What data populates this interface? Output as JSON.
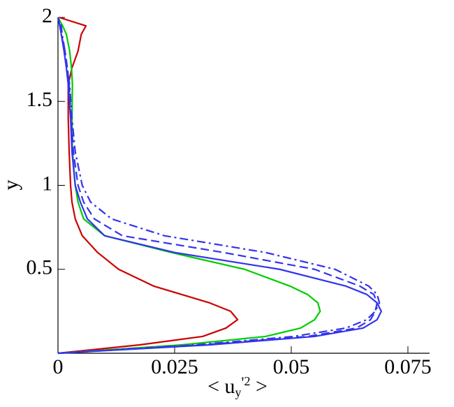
{
  "chart_data": {
    "type": "line",
    "ylabel": "y",
    "xlabel_parts": [
      "< u",
      "y",
      "'",
      "2",
      " >"
    ],
    "xlim": [
      0,
      0.08
    ],
    "xticks": [
      0,
      0.025,
      0.05,
      0.075
    ],
    "ylim": [
      0,
      2
    ],
    "yticks": [
      0.5,
      1,
      1.5,
      2
    ],
    "y": [
      0,
      0.05,
      0.1,
      0.15,
      0.2,
      0.25,
      0.3,
      0.35,
      0.4,
      0.5,
      0.6,
      0.7,
      0.8,
      0.9,
      1.0,
      1.2,
      1.4,
      1.6,
      1.7,
      1.8,
      1.9,
      1.95,
      2.0
    ],
    "series": [
      {
        "color": "#cc0000",
        "dash": "solid",
        "values": [
          0,
          0.0175,
          0.031,
          0.036,
          0.0385,
          0.037,
          0.0325,
          0.0265,
          0.0205,
          0.013,
          0.0085,
          0.0052,
          0.0037,
          0.003,
          0.0027,
          0.0024,
          0.0022,
          0.0022,
          0.003,
          0.0043,
          0.005,
          0.006,
          0.0003
        ]
      },
      {
        "color": "#00cc00",
        "dash": "solid",
        "values": [
          0,
          0.0265,
          0.0445,
          0.052,
          0.055,
          0.0562,
          0.0557,
          0.0535,
          0.0497,
          0.04,
          0.0243,
          0.01,
          0.0055,
          0.0043,
          0.0037,
          0.0031,
          0.003,
          0.0031,
          0.0029,
          0.0025,
          0.0018,
          0.001,
          0
        ]
      },
      {
        "color": "#3333ee",
        "dash": "solid",
        "values": [
          0,
          0.0325,
          0.055,
          0.0654,
          0.0684,
          0.0693,
          0.0684,
          0.0662,
          0.0617,
          0.0475,
          0.025,
          0.01,
          0.0063,
          0.0048,
          0.0037,
          0.003,
          0.0027,
          0.0022,
          0.0018,
          0.0013,
          0.0007,
          0.0004,
          0
        ]
      },
      {
        "color": "#3333ee",
        "dash": "dashed",
        "values": [
          0,
          0.031,
          0.0535,
          0.064,
          0.067,
          0.068,
          0.0684,
          0.0677,
          0.0647,
          0.055,
          0.0355,
          0.0138,
          0.0078,
          0.0055,
          0.0043,
          0.0033,
          0.0028,
          0.0024,
          0.002,
          0.0015,
          0.0007,
          0.0004,
          0
        ]
      },
      {
        "color": "#3333ee",
        "dash": "dashdot",
        "values": [
          0,
          0.0295,
          0.0505,
          0.0617,
          0.0662,
          0.068,
          0.0689,
          0.0684,
          0.0666,
          0.0594,
          0.0445,
          0.0228,
          0.0115,
          0.007,
          0.0052,
          0.0037,
          0.003,
          0.0025,
          0.002,
          0.0015,
          0.0009,
          0.0007,
          0
        ]
      }
    ]
  }
}
